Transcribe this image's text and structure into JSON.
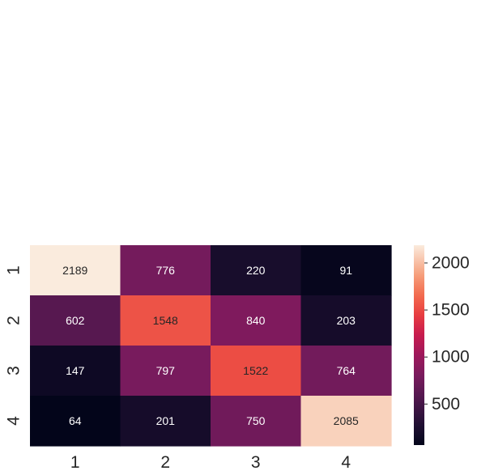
{
  "chart_data": {
    "type": "heatmap",
    "title": "",
    "xlabel": "",
    "ylabel": "",
    "x_categories": [
      "1",
      "2",
      "3",
      "4"
    ],
    "y_categories": [
      "1",
      "2",
      "3",
      "4"
    ],
    "values": [
      [
        2189,
        776,
        220,
        91
      ],
      [
        602,
        1548,
        840,
        203
      ],
      [
        147,
        797,
        1522,
        764
      ],
      [
        64,
        201,
        750,
        2085
      ]
    ],
    "colorbar": {
      "min": 64,
      "max": 2189,
      "ticks": [
        500,
        1000,
        1500,
        2000
      ],
      "tick_labels": [
        "500",
        "1000",
        "1500",
        "2000"
      ],
      "colormap": "rocket"
    },
    "grid": false
  }
}
